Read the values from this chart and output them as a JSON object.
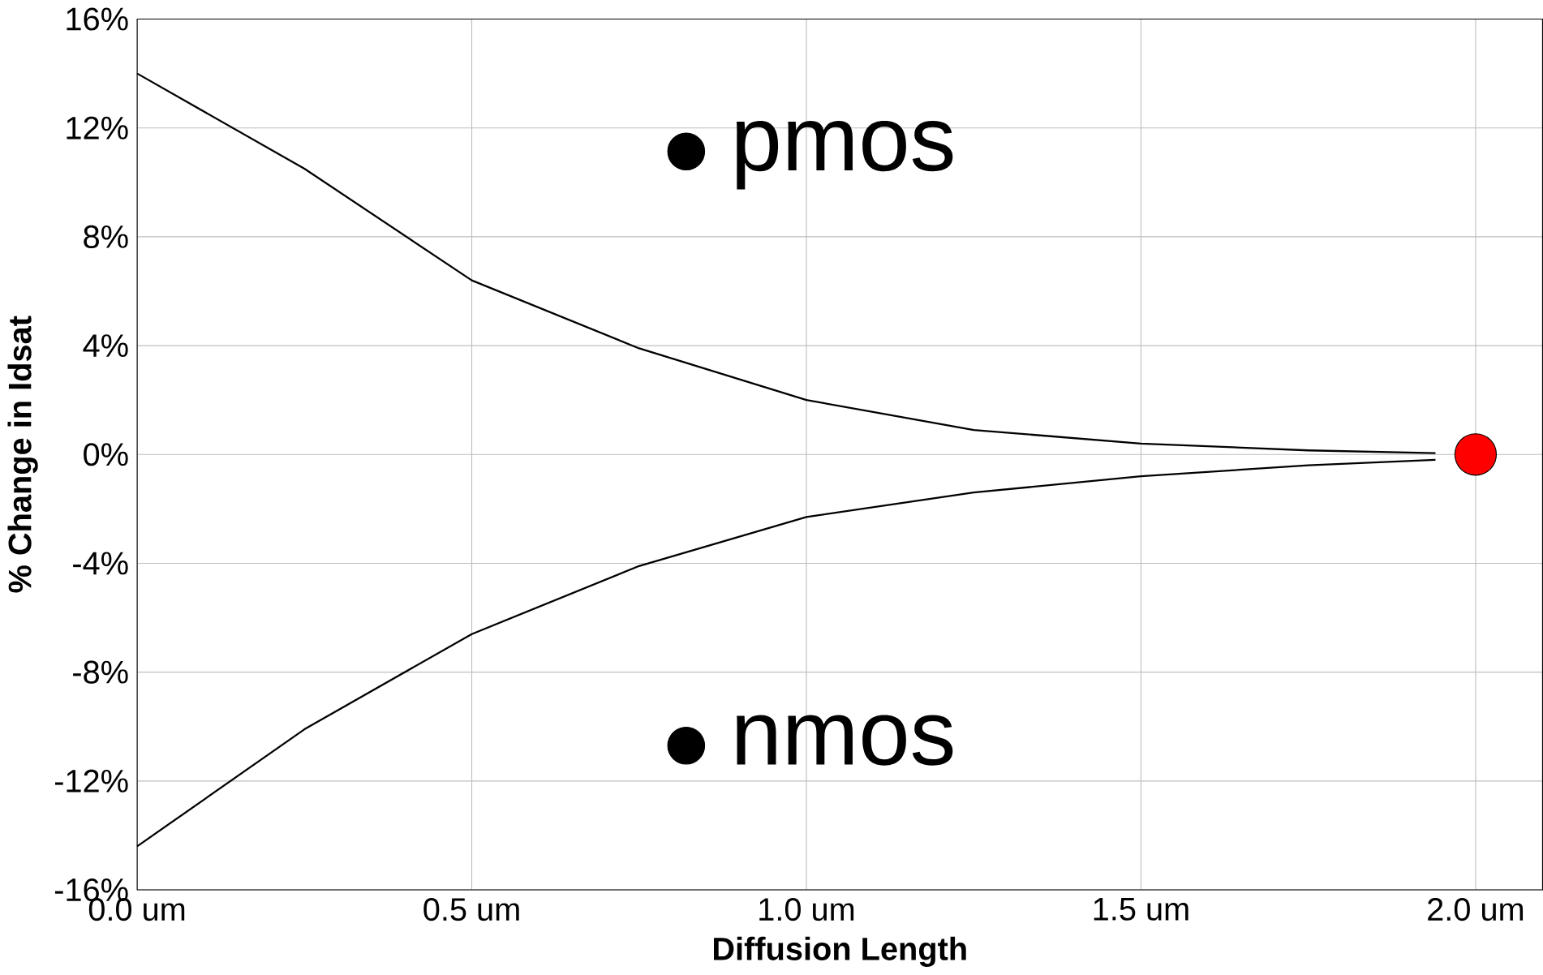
{
  "chart_data": {
    "type": "line",
    "xlabel": "Diffusion Length",
    "ylabel": "% Change in Idsat",
    "x": [
      0,
      0.25,
      0.5,
      0.75,
      1.0,
      1.25,
      1.5,
      1.75,
      1.94
    ],
    "series": [
      {
        "name": "pmos",
        "color": "#000000",
        "values": [
          14,
          10.5,
          6.4,
          3.9,
          2.0,
          0.9,
          0.4,
          0.15,
          0.05
        ]
      },
      {
        "name": "nmos",
        "color": "#000000",
        "values": [
          -14.4,
          -10.1,
          -6.6,
          -4.1,
          -2.3,
          -1.4,
          -0.8,
          -0.4,
          -0.2
        ]
      },
      {
        "type": "scatter",
        "color": "#ff0000",
        "x": [
          2.0
        ],
        "values": [
          0
        ],
        "marker": "circle"
      }
    ],
    "xlim": [
      0,
      2.1
    ],
    "ylim": [
      -16,
      16
    ],
    "xticks": [
      {
        "value": 0,
        "label": "0.0 um"
      },
      {
        "value": 0.5,
        "label": "0.5 um"
      },
      {
        "value": 1.0,
        "label": "1.0 um"
      },
      {
        "value": 1.5,
        "label": "1.5 um"
      },
      {
        "value": 2.0,
        "label": "2.0 um"
      }
    ],
    "yticks": [
      {
        "value": -16,
        "label": "-16%"
      },
      {
        "value": -12,
        "label": "-12%"
      },
      {
        "value": -8,
        "label": "-8%"
      },
      {
        "value": -4,
        "label": "-4%"
      },
      {
        "value": 0,
        "label": "0%"
      },
      {
        "value": 4,
        "label": "4%"
      },
      {
        "value": 8,
        "label": "8%"
      },
      {
        "value": 12,
        "label": "12%"
      },
      {
        "value": 16,
        "label": "16%"
      }
    ],
    "grid": true,
    "legend": "center",
    "marker": "none",
    "line_style": "solid"
  }
}
